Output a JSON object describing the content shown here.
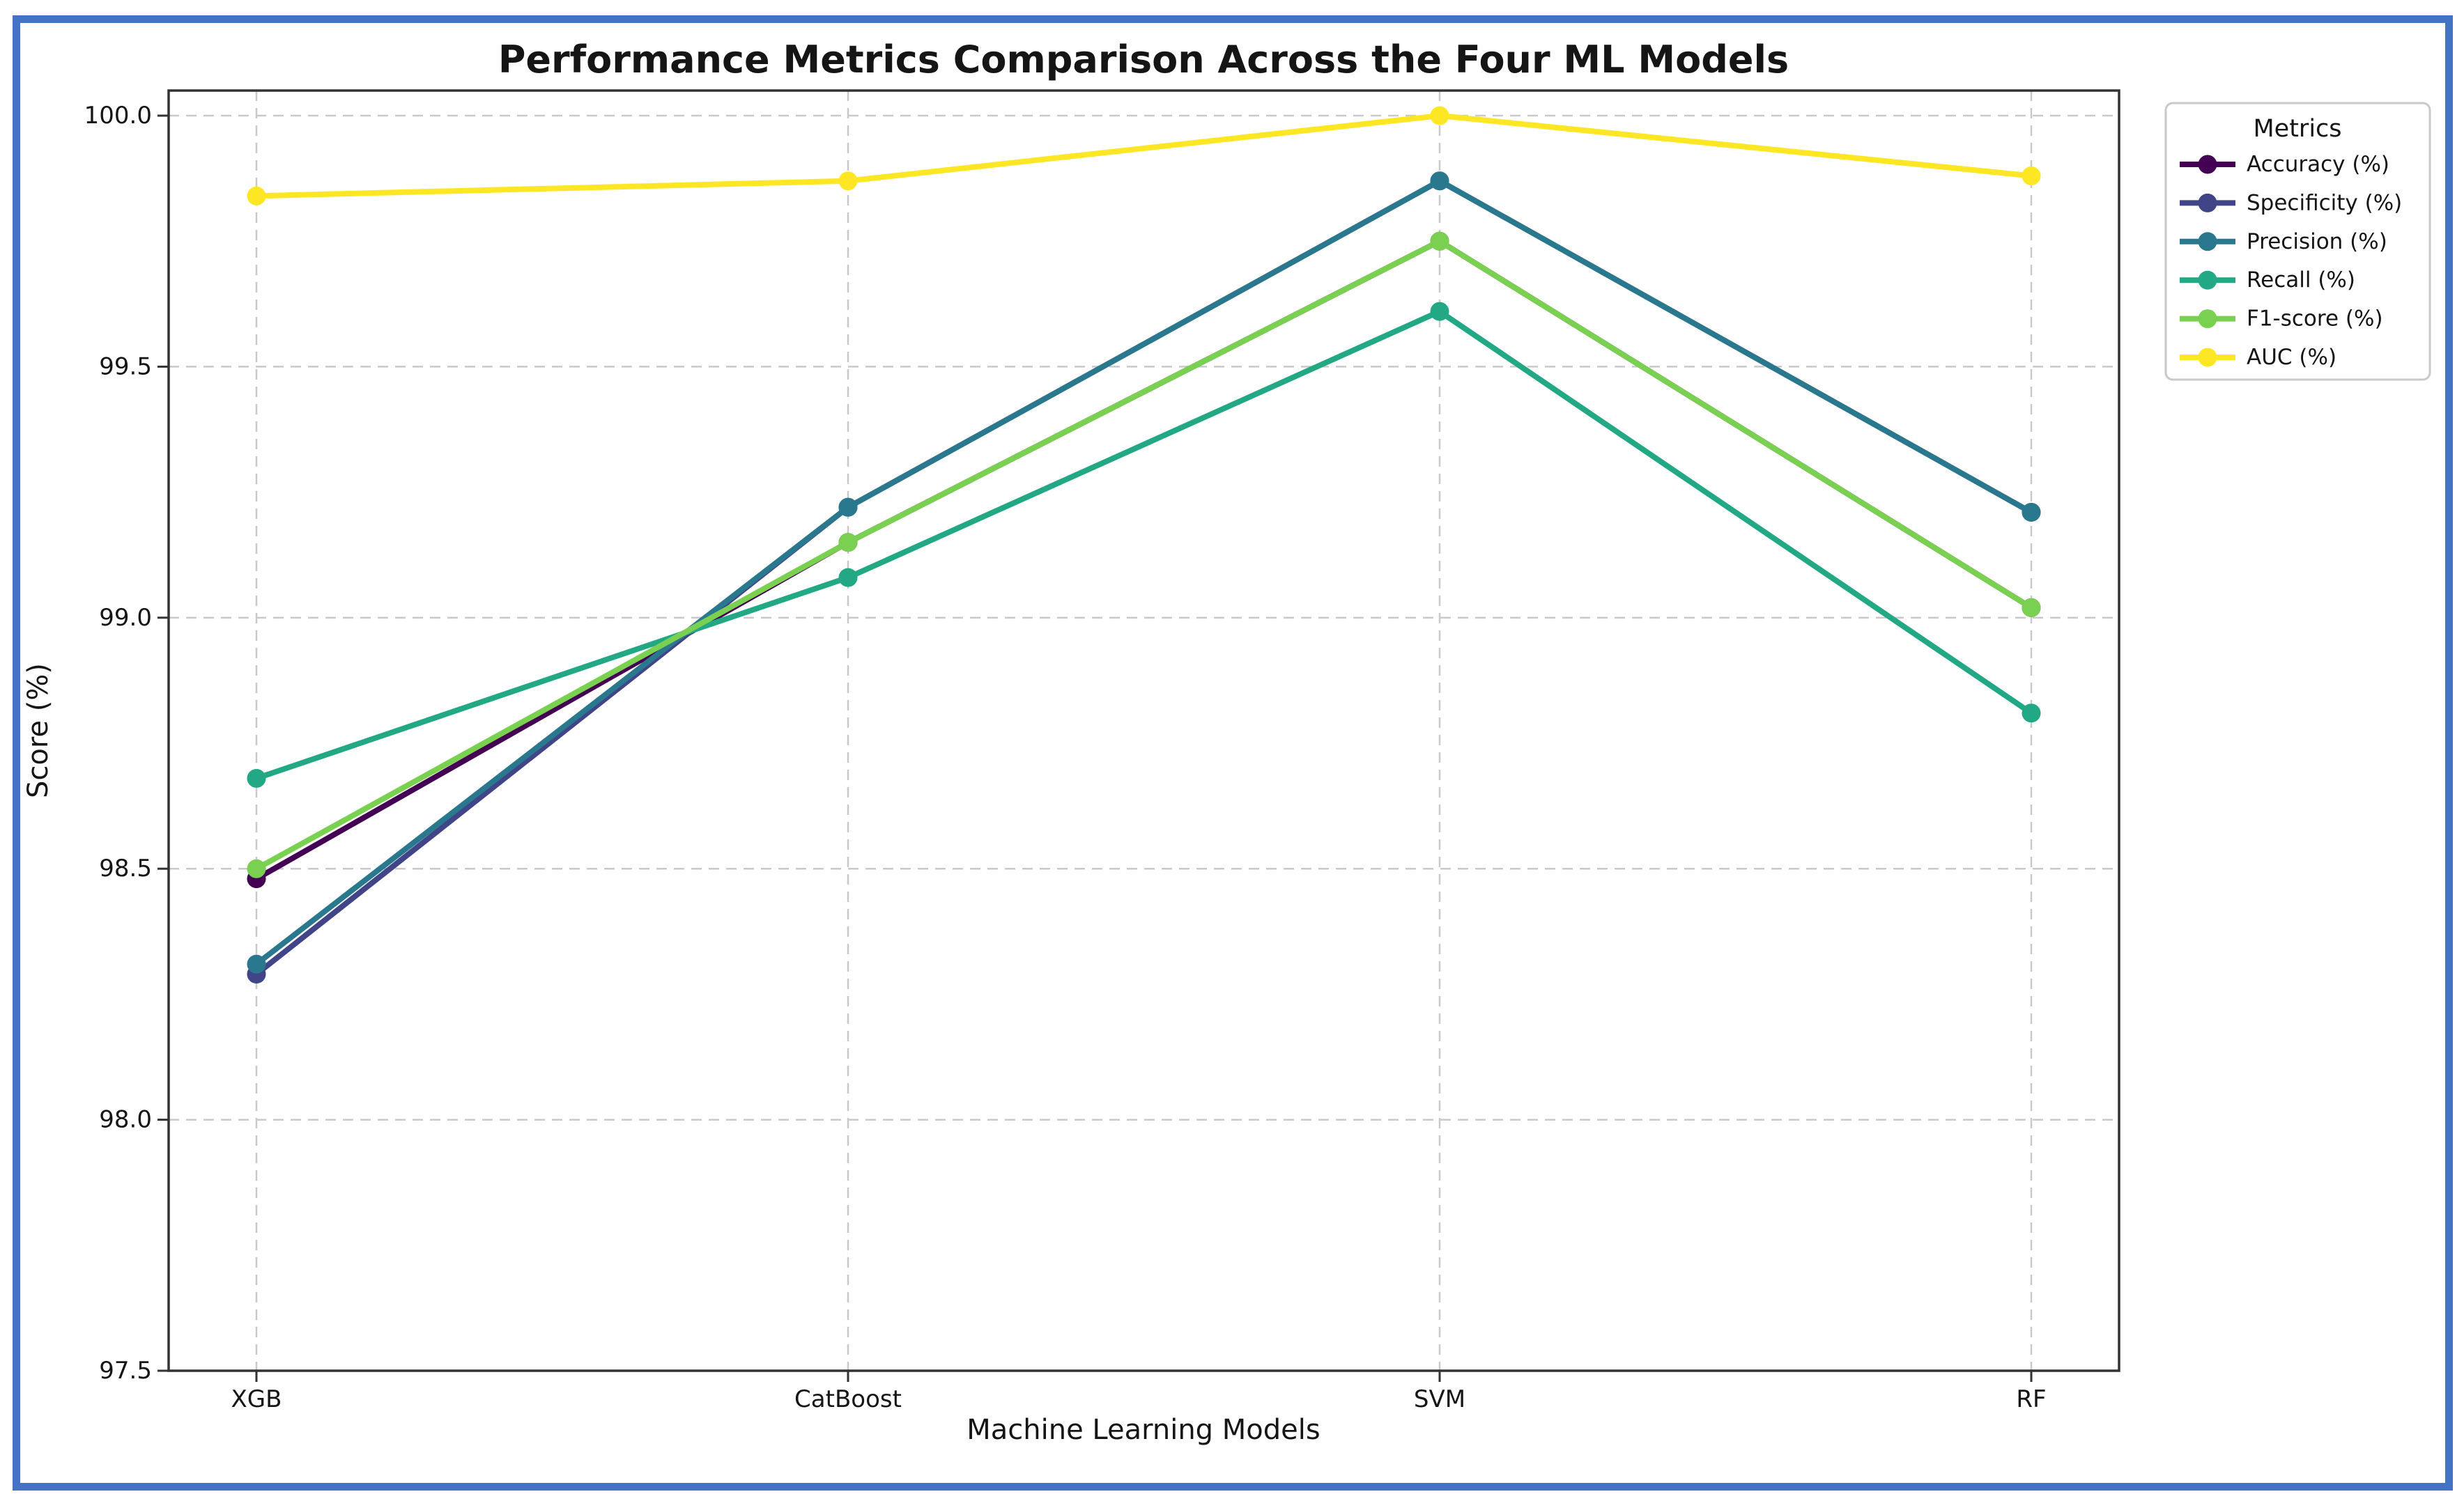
{
  "figure": {
    "frame_color": "#4472C4",
    "background_color": "#FFFFFF",
    "plot_border_color": "#333333",
    "grid_color": "#C9C9C9",
    "text_color": "#151515"
  },
  "chart_data": {
    "type": "line",
    "title": "Performance Metrics Comparison Across the Four ML Models",
    "xlabel": "Machine Learning Models",
    "ylabel": "Score (%)",
    "categories": [
      "XGB",
      "CatBoost",
      "SVM",
      "RF"
    ],
    "yticks": [
      97.5,
      98.0,
      98.5,
      99.0,
      99.5,
      100.0
    ],
    "ytick_labels": [
      "97.5",
      "98.0",
      "98.5",
      "99.0",
      "99.5",
      "100.0"
    ],
    "ylim": [
      97.5,
      100.05
    ],
    "grid": true,
    "grid_style": "dashed",
    "marker": "circle",
    "legend_title": "Metrics",
    "legend_position": "outside-upper-right",
    "series": [
      {
        "name": "Accuracy (%)",
        "color": "#440154",
        "values": [
          98.48,
          99.15,
          99.75,
          99.02
        ]
      },
      {
        "name": "Specificity (%)",
        "color": "#414487",
        "values": [
          98.29,
          99.22,
          99.87,
          99.21
        ]
      },
      {
        "name": "Precision (%)",
        "color": "#2A788E",
        "values": [
          98.31,
          99.22,
          99.87,
          99.21
        ]
      },
      {
        "name": "Recall (%)",
        "color": "#22A884",
        "values": [
          98.68,
          99.08,
          99.61,
          98.81
        ]
      },
      {
        "name": "F1-score (%)",
        "color": "#7AD151",
        "values": [
          98.5,
          99.15,
          99.75,
          99.02
        ]
      },
      {
        "name": "AUC (%)",
        "color": "#FDE725",
        "values": [
          99.84,
          99.87,
          100.0,
          99.88
        ]
      }
    ]
  }
}
